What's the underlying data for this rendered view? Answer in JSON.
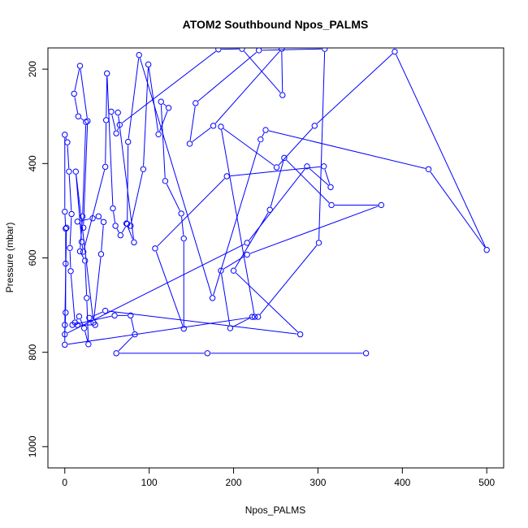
{
  "chart_data": {
    "type": "line",
    "title": "ATOM2 Southbound Npos_PALMS",
    "xlabel": "Npos_PALMS",
    "ylabel": "Pressure (mbar)",
    "xlim": [
      -20,
      520
    ],
    "ylim": [
      1045,
      155
    ],
    "y_reversed": true,
    "x_ticks": [
      0,
      100,
      200,
      300,
      400,
      500
    ],
    "y_ticks": [
      200,
      400,
      600,
      800,
      1000
    ],
    "grid": false,
    "legend": "none",
    "color": "#0000ff",
    "series": [
      {
        "values": [
          [
            357,
            802
          ],
          [
            169,
            802
          ],
          [
            61,
            802
          ],
          [
            83,
            762
          ],
          [
            78,
            722
          ],
          [
            59,
            722
          ],
          [
            9,
            742
          ],
          [
            15,
            742
          ],
          [
            36,
            742
          ],
          [
            29,
            727
          ],
          [
            48,
            712
          ],
          [
            279,
            762
          ],
          [
            200,
            627
          ],
          [
            243,
            498
          ],
          [
            260,
            388
          ],
          [
            316,
            488
          ],
          [
            375,
            488
          ],
          [
            216,
            593
          ],
          [
            185,
            627
          ],
          [
            196,
            749
          ],
          [
            222,
            725
          ],
          [
            229,
            725
          ],
          [
            301,
            568
          ],
          [
            308,
            157
          ],
          [
            230,
            160
          ],
          [
            155,
            272
          ],
          [
            148,
            358
          ],
          [
            176,
            320
          ],
          [
            257,
            157
          ],
          [
            258,
            255
          ],
          [
            210,
            157
          ],
          [
            182,
            158
          ],
          [
            65,
            318
          ],
          [
            61,
            336
          ],
          [
            55,
            290
          ],
          [
            63,
            292
          ],
          [
            82,
            567
          ],
          [
            73,
            527
          ],
          [
            78,
            532
          ],
          [
            93,
            412
          ],
          [
            99,
            190
          ],
          [
            111,
            338
          ],
          [
            123,
            282
          ],
          [
            114,
            269
          ],
          [
            119,
            437
          ],
          [
            138,
            506
          ],
          [
            141,
            559
          ],
          [
            141,
            750
          ],
          [
            107,
            580
          ],
          [
            192,
            427
          ],
          [
            307,
            406
          ],
          [
            315,
            450
          ],
          [
            287,
            406
          ],
          [
            216,
            568
          ],
          [
            0,
            762
          ],
          [
            1,
            716
          ],
          [
            1,
            612
          ],
          [
            1,
            538
          ],
          [
            0,
            502
          ],
          [
            0,
            339
          ],
          [
            3,
            355
          ],
          [
            5,
            417
          ],
          [
            8,
            507
          ],
          [
            6,
            579
          ],
          [
            7,
            628
          ],
          [
            12,
            737
          ],
          [
            17,
            724
          ],
          [
            23,
            749
          ],
          [
            28,
            783
          ],
          [
            26,
            685
          ],
          [
            24,
            606
          ],
          [
            18,
            586
          ],
          [
            21,
            512
          ],
          [
            25,
            312
          ],
          [
            16,
            300
          ],
          [
            11,
            252
          ],
          [
            18,
            193
          ],
          [
            27,
            310
          ],
          [
            22,
            536
          ],
          [
            15,
            523
          ],
          [
            33,
            516
          ],
          [
            40,
            512
          ],
          [
            46,
            524
          ],
          [
            43,
            592
          ],
          [
            34,
            737
          ],
          [
            13,
            417
          ],
          [
            20,
            566
          ],
          [
            22,
            587
          ],
          [
            48,
            407
          ],
          [
            49,
            308
          ],
          [
            50,
            209
          ],
          [
            57,
            495
          ],
          [
            60,
            532
          ],
          [
            66,
            552
          ],
          [
            74,
            528
          ],
          [
            75,
            354
          ],
          [
            88,
            170
          ],
          [
            175,
            685
          ],
          [
            232,
            349
          ],
          [
            238,
            329
          ],
          [
            431,
            412
          ],
          [
            500,
            583
          ],
          [
            391,
            163
          ],
          [
            296,
            320
          ],
          [
            251,
            408
          ],
          [
            185,
            322
          ],
          [
            225,
            725
          ],
          [
            0,
            784
          ],
          [
            0,
            742
          ],
          [
            2,
            536
          ]
        ]
      }
    ]
  }
}
